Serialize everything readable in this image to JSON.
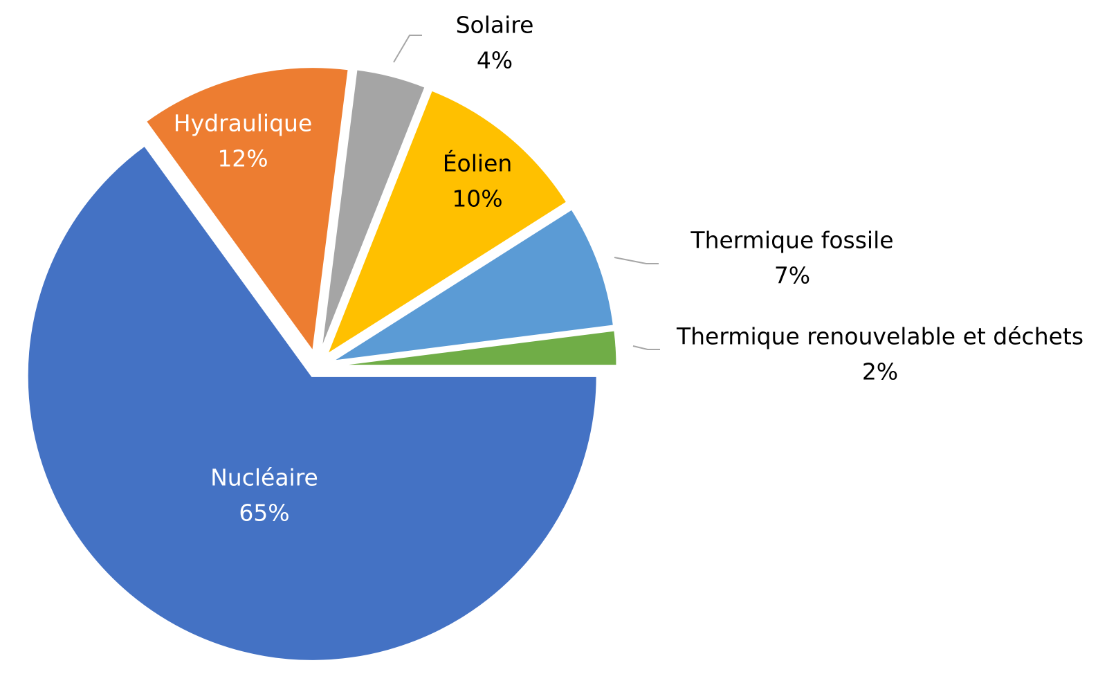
{
  "chart_data": {
    "type": "pie",
    "categories": [
      "Nucléaire",
      "Hydraulique",
      "Solaire",
      "Éolien",
      "Thermique fossile",
      "Thermique renouvelable et déchets"
    ],
    "values": [
      65,
      12,
      4,
      10,
      7,
      2
    ],
    "value_labels": [
      "65%",
      "12%",
      "4%",
      "10%",
      "7%",
      "2%"
    ],
    "colors": [
      "#4472c4",
      "#ed7d31",
      "#a5a5a5",
      "#ffc000",
      "#5b9bd5",
      "#70ad47"
    ]
  }
}
